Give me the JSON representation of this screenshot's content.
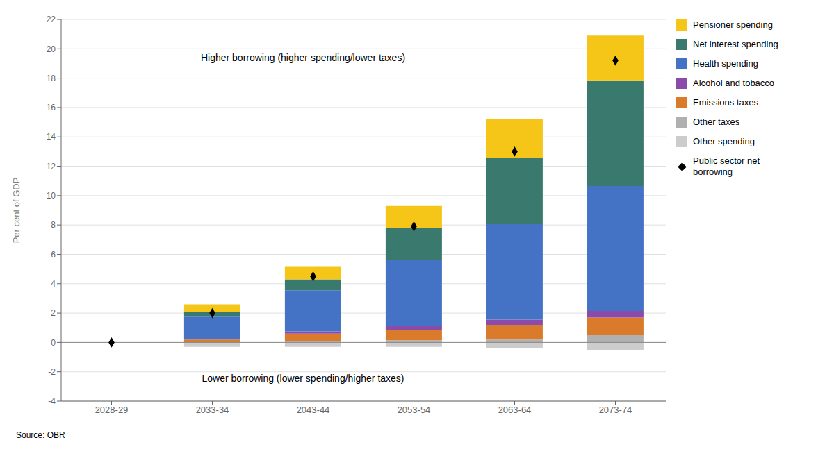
{
  "chart_data": {
    "type": "bar",
    "stacked": true,
    "grid": true,
    "legend": "right",
    "ylabel": "Per cent of GDP",
    "annotations": [
      "Higher borrowing (higher spending/lower taxes)",
      "Lower borrowing (lower spending/higher taxes)"
    ],
    "source": "Source: OBR",
    "categories": [
      "2028-29",
      "2033-34",
      "2043-44",
      "2053-54",
      "2063-64",
      "2073-74"
    ],
    "ylim": [
      -4,
      22
    ],
    "yticks": [
      -4,
      -2,
      0,
      2,
      4,
      6,
      8,
      10,
      12,
      14,
      16,
      18,
      20,
      22
    ],
    "series": [
      {
        "name": "Other spending",
        "type": "bar",
        "color": "#cccccc",
        "values": [
          0,
          -0.3,
          -0.3,
          -0.3,
          -0.4,
          -0.5
        ]
      },
      {
        "name": "Other taxes",
        "type": "bar",
        "color": "#b0b0b0",
        "values": [
          0,
          0.0,
          0.1,
          0.15,
          0.2,
          0.5
        ]
      },
      {
        "name": "Emissions taxes",
        "type": "bar",
        "color": "#d97b2a",
        "values": [
          0,
          0.2,
          0.5,
          0.7,
          1.0,
          1.2
        ]
      },
      {
        "name": "Alcohol and tobacco",
        "type": "bar",
        "color": "#8b4bab",
        "values": [
          0,
          0.05,
          0.15,
          0.25,
          0.35,
          0.45
        ]
      },
      {
        "name": "Health spending",
        "type": "bar",
        "color": "#4472c4",
        "values": [
          0,
          1.5,
          2.8,
          4.5,
          6.5,
          8.5
        ]
      },
      {
        "name": "Net interest spending",
        "type": "bar",
        "color": "#3a7a6e",
        "values": [
          0,
          0.35,
          0.75,
          2.2,
          4.5,
          7.2
        ]
      },
      {
        "name": "Pensioner spending",
        "type": "bar",
        "color": "#f5c518",
        "values": [
          0,
          0.5,
          0.9,
          1.5,
          2.65,
          3.05
        ]
      },
      {
        "name": "Public sector net\nborrowing",
        "type": "scatter",
        "marker": "diamond",
        "color": "#000000",
        "values": [
          0,
          2.0,
          4.5,
          7.9,
          13.0,
          19.2
        ]
      }
    ]
  }
}
